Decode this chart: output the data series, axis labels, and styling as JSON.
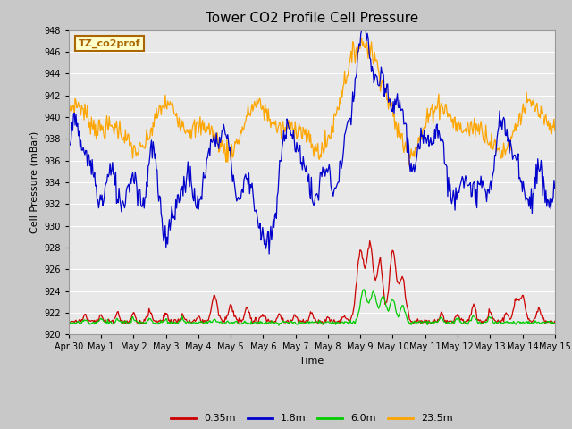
{
  "title": "Tower CO2 Profile Cell Pressure",
  "ylabel": "Cell Pressure (mBar)",
  "xlabel": "Time",
  "ylim": [
    920,
    948
  ],
  "yticks": [
    920,
    922,
    924,
    926,
    928,
    930,
    932,
    934,
    936,
    938,
    940,
    942,
    944,
    946,
    948
  ],
  "colors": {
    "0.35m": "#cc0000",
    "1.8m": "#0000cc",
    "6.0m": "#00cc00",
    "23.5m": "#ffa500"
  },
  "legend_labels": [
    "0.35m",
    "1.8m",
    "6.0m",
    "23.5m"
  ],
  "fig_bg_color": "#c8c8c8",
  "plot_bg": "#e8e8e8",
  "annotation_text": "TZ_co2prof",
  "annotation_fg": "#aa6600",
  "annotation_bg": "#ffffcc",
  "annotation_border": "#aa6600",
  "grid_color": "#ffffff",
  "n_points": 600
}
